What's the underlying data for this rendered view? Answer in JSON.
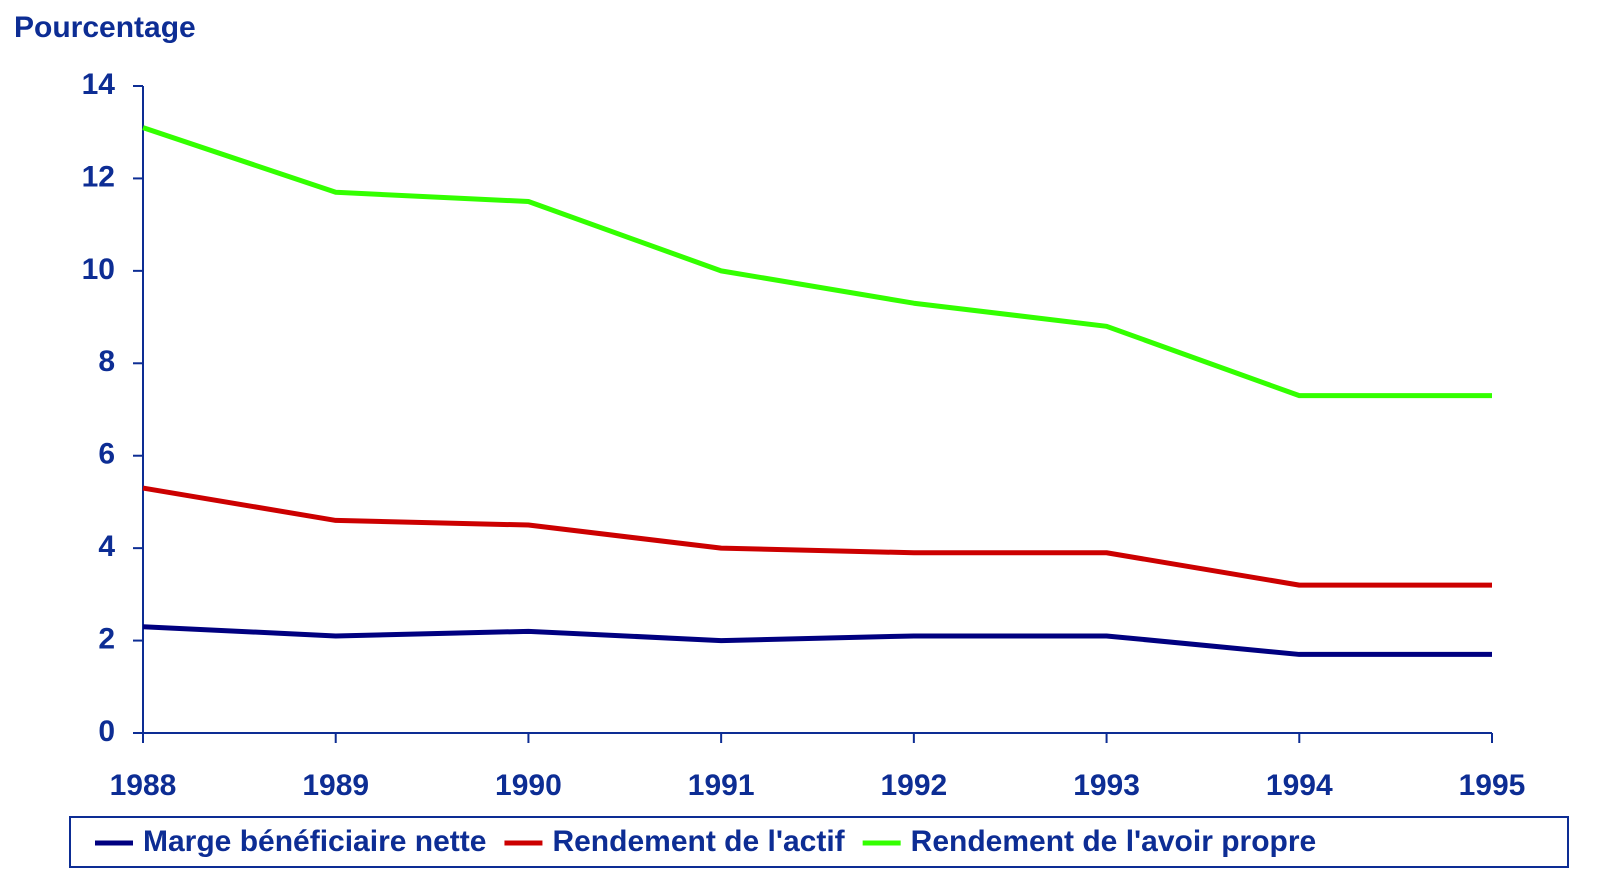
{
  "chart_data": {
    "type": "line",
    "y_label": "Pourcentage",
    "categories": [
      "1988",
      "1989",
      "1990",
      "1991",
      "1992",
      "1993",
      "1994",
      "1995"
    ],
    "series": [
      {
        "name": "Marge bénéficiaire nette",
        "color": "#000080",
        "values": [
          2.3,
          2.1,
          2.2,
          2.0,
          2.1,
          2.1,
          1.7,
          1.7
        ]
      },
      {
        "name": "Rendement de l'actif",
        "color": "#cc0000",
        "values": [
          5.3,
          4.6,
          4.5,
          4.0,
          3.9,
          3.9,
          3.2,
          3.2
        ]
      },
      {
        "name": "Rendement de l'avoir propre",
        "color": "#33ff00",
        "values": [
          13.1,
          11.7,
          11.5,
          10.0,
          9.3,
          8.8,
          7.3,
          7.3
        ]
      }
    ],
    "ylim": [
      0,
      14
    ],
    "yticks": [
      0,
      2,
      4,
      6,
      8,
      10,
      12,
      14
    ],
    "grid": false,
    "legend": "bottom"
  }
}
